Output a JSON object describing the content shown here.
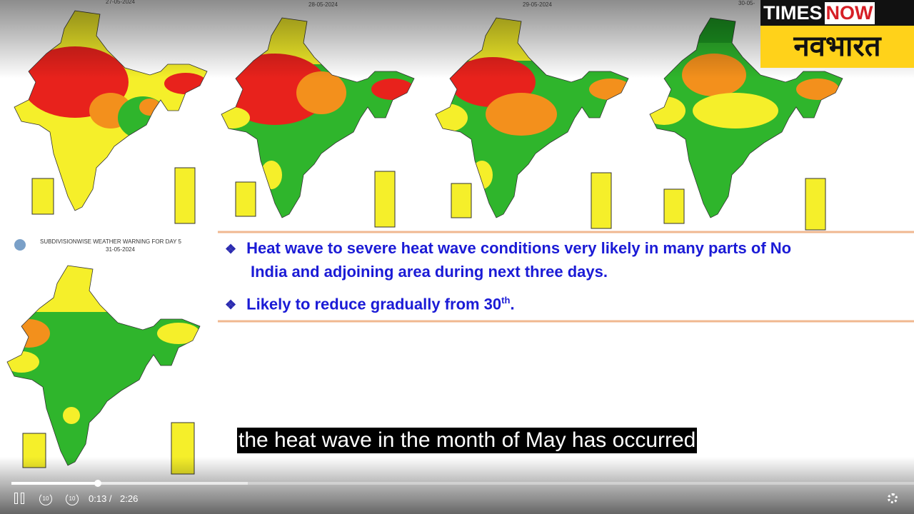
{
  "slides": {
    "maps": [
      {
        "date": "27-05-2024"
      },
      {
        "date": "28-05-2024"
      },
      {
        "date": "29-05-2024"
      },
      {
        "date": "30-05-"
      }
    ],
    "day5": {
      "title": "SUBDIVISIONWISE WEATHER WARNING FOR DAY 5",
      "date": "31-05-2024"
    },
    "bullets": [
      {
        "lines": [
          "Heat wave to severe heat wave conditions very likely in many parts of No",
          "India and adjoining area during next three days."
        ]
      },
      {
        "text": "Likely to reduce gradually from 30",
        "sup": "th",
        "end": "."
      }
    ]
  },
  "logo": {
    "times": "TIMES",
    "now": "NOW",
    "brand": "नवभारत"
  },
  "caption": "the heat wave in the month of May has occurred",
  "player": {
    "rewind_label": "10",
    "forward_label": "10",
    "current_time": "0:13 /",
    "duration": "2:26"
  }
}
